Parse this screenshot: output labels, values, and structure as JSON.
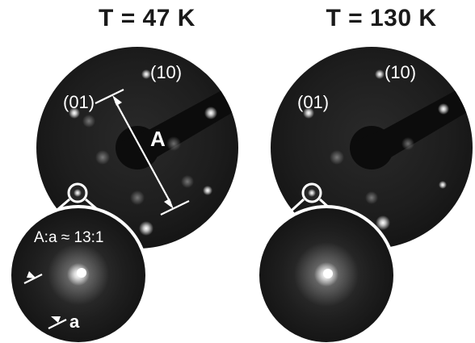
{
  "panels": [
    {
      "title": "T = 47 K",
      "labels": {
        "spot_10": "(10)",
        "spot_01": "(01)",
        "distance_big": "A",
        "ratio": "A:a ≈ 13:1",
        "distance_small": "a"
      }
    },
    {
      "title": "T = 130 K",
      "labels": {
        "spot_10": "(10)",
        "spot_01": "(01)"
      }
    }
  ]
}
